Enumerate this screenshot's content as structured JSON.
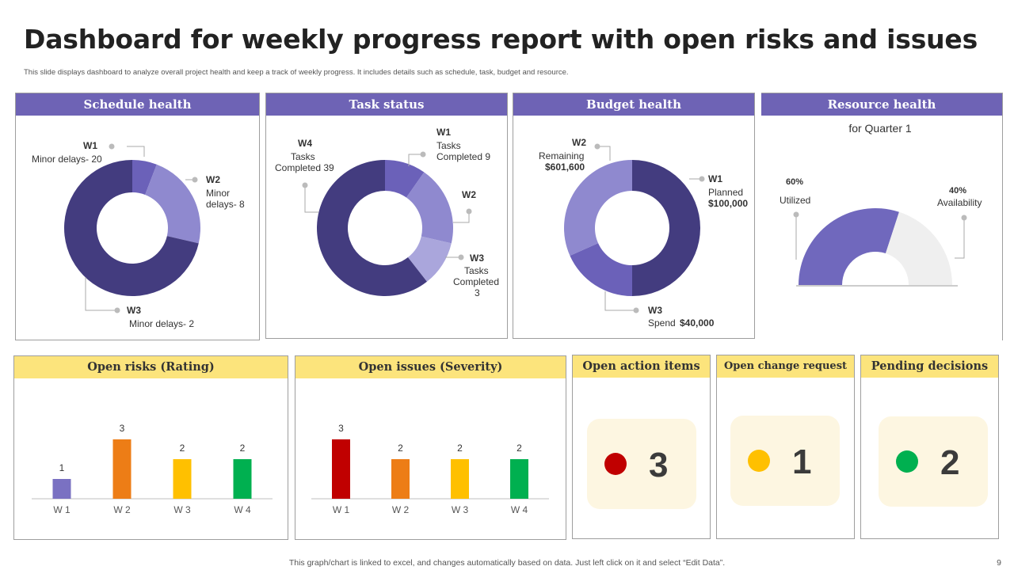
{
  "title": "Dashboard for weekly progress report with open risks and issues",
  "subtitle": "This slide displays dashboard to analyze overall project health and keep a track of weekly progress. It includes details such as schedule, task, budget and resource.",
  "footer": "This graph/chart is linked to excel, and changes automatically based on data. Just left click on it and select “Edit Data”.",
  "page_number": "9",
  "colors": {
    "header_purple": "#6e63b5",
    "header_yellow": "#fce47c",
    "dark_purple": "#433c7f",
    "mid_purple": "#6b61b9",
    "light_purple": "#8f89cf",
    "lightest_purple": "#aaa6dc",
    "red": "#c00000",
    "orange": "#ed7d16",
    "gold": "#ffc000",
    "green": "#00b050"
  },
  "panels": {
    "schedule": {
      "header": "Schedule health",
      "w1_title": "W1",
      "w1_text": "Minor delays- 20",
      "w2_title": "W2",
      "w2_text1": "Minor",
      "w2_text2": "delays- 8",
      "w3_title": "W3",
      "w3_text": "Minor delays- 2"
    },
    "task": {
      "header": "Task status",
      "w4_title": "W4",
      "w4_text1": "Tasks",
      "w4_text2": "Completed 39",
      "w1_title": "W1",
      "w1_text1": "Tasks",
      "w1_text2": "Completed 9",
      "w2_title": "W2",
      "w3_title": "W3",
      "w3_text1": "Tasks",
      "w3_text2": "Completed",
      "w3_text3": "3"
    },
    "budget": {
      "header": "Budget health",
      "w2_title": "W2",
      "w2_text1": "Remaining",
      "w2_text2": "$601,600",
      "w1_title": "W1",
      "w1_text1": "Planned",
      "w1_text2": "$100,000",
      "w3_title": "W3",
      "w3_text1": "Spend",
      "w3_text2": "$40,000"
    },
    "resource": {
      "header": "Resource health",
      "sub": "for Quarter 1",
      "util_pct": "60%",
      "util_label": "Utilized",
      "avail_pct": "40%",
      "avail_label": "Availability"
    },
    "risks": {
      "header": "Open risks (Rating)"
    },
    "issues": {
      "header": "Open issues (Severity)"
    },
    "actions": {
      "header": "Open action items",
      "value": "3",
      "dot_color": "#c00000"
    },
    "change": {
      "header": "Open change request",
      "value": "1",
      "dot_color": "#ffc000"
    },
    "decisions": {
      "header": "Pending decisions",
      "value": "2",
      "dot_color": "#00b050"
    }
  },
  "chart_data": [
    {
      "type": "pie",
      "title": "Schedule health",
      "categories": [
        "W1",
        "W2",
        "W3"
      ],
      "values": [
        20,
        8,
        2
      ],
      "hole": true
    },
    {
      "type": "pie",
      "title": "Task status",
      "categories": [
        "W1",
        "W2",
        "W3",
        "W4"
      ],
      "values": [
        9,
        null,
        3,
        39
      ],
      "hole": true
    },
    {
      "type": "pie",
      "title": "Budget health",
      "categories": [
        "W1",
        "W2",
        "W3"
      ],
      "labels": [
        "Planned $100,000",
        "Remaining $601,600",
        "Spend $40,000"
      ],
      "hole": true
    },
    {
      "type": "pie",
      "title": "Resource health",
      "subtitle": "for Quarter 1",
      "categories": [
        "Utilized",
        "Availability"
      ],
      "values": [
        60,
        40
      ],
      "half": true
    },
    {
      "type": "bar",
      "title": "Open risks (Rating)",
      "categories": [
        "W 1",
        "W 2",
        "W 3",
        "W 4"
      ],
      "values": [
        1,
        3,
        2,
        2
      ],
      "colors": [
        "#7a71c2",
        "#ed7d16",
        "#ffc000",
        "#00b050"
      ],
      "ylim": [
        0,
        3.6
      ]
    },
    {
      "type": "bar",
      "title": "Open issues (Severity)",
      "categories": [
        "W 1",
        "W 2",
        "W 3",
        "W 4"
      ],
      "values": [
        3,
        2,
        2,
        2
      ],
      "colors": [
        "#c00000",
        "#ed7d16",
        "#ffc000",
        "#00b050"
      ],
      "ylim": [
        0,
        3.6
      ]
    }
  ]
}
